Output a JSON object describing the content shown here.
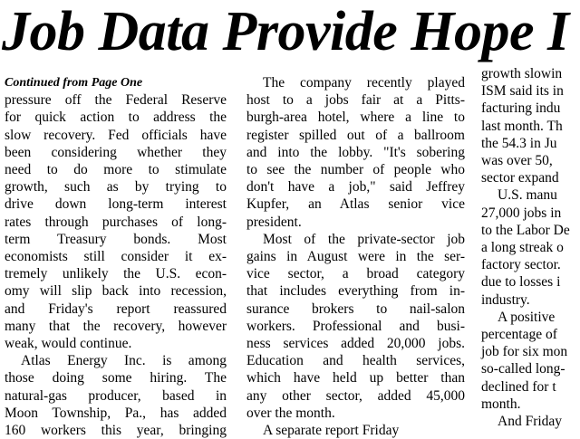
{
  "headline": "Job Data Provide Hope I",
  "continued": "Continued from Page One",
  "columns": [
    {
      "paragraphs": [
        [
          "pressure off the Federal Reserve",
          "for quick action to address the",
          "slow recovery. Fed officials have",
          "been considering whether they",
          "need to do more to stimulate",
          "growth, such as by trying to",
          "drive down long-term interest",
          "rates through purchases of long-",
          "term Treasury bonds. Most",
          "economists still consider it ex-",
          "tremely unlikely the U.S. econ-",
          "omy will slip back into recession,",
          "and Friday's report reassured",
          "many that the recovery, however",
          "weak, would continue."
        ],
        [
          "Atlas Energy Inc. is among",
          "those doing some hiring. The",
          "natural-gas producer, based in",
          "Moon Township, Pa., has added",
          "160 workers this year, bringing"
        ]
      ]
    },
    {
      "paragraphs": [
        [
          "The company recently played",
          "host to a jobs fair at a Pitts-",
          "burgh-area hotel, where a line to",
          "register spilled out of a ballroom",
          "and into the lobby. \"It's sobering",
          "to see the number of people who",
          "don't have a job,\" said Jeffrey",
          "Kupfer, an Atlas senior vice",
          "president."
        ],
        [
          "Most of the private-sector job",
          "gains in August were in the ser-",
          "vice sector, a broad category",
          "that includes everything from in-",
          "surance brokers to nail-salon",
          "workers. Professional and busi-",
          "ness services added 20,000 jobs.",
          "Education and health services,",
          "which have held up better than",
          "any other sector, added 45,000",
          "over the month."
        ],
        [
          "A separate report Friday"
        ]
      ]
    },
    {
      "paragraphs": [
        [
          "growth slowin",
          "ISM said its in",
          "facturing indu",
          "last month. Th",
          "the 54.3 in Ju",
          "was over 50,",
          "sector expand"
        ],
        [
          "U.S. manu",
          "27,000 jobs in",
          "to the Labor De",
          "a long streak o",
          "factory sector.",
          "due to losses i",
          "industry."
        ],
        [
          "A positive",
          "percentage of",
          "job for six mon",
          "so-called long-",
          "declined for t",
          "month."
        ],
        [
          "And Friday"
        ]
      ]
    }
  ]
}
